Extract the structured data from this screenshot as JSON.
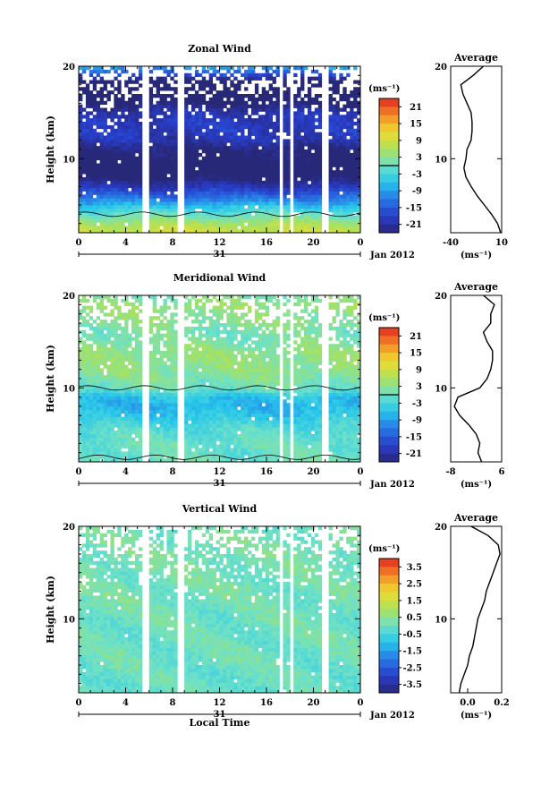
{
  "figure": {
    "xlabel": "Local Time",
    "date_label": "Jan 2012",
    "day_label": "31",
    "x_tick_labels": [
      "0",
      "4",
      "8",
      "12",
      "16",
      "20",
      "0"
    ],
    "y_tick_labels": [
      "20",
      "10"
    ],
    "ylabel": "Height (km)",
    "colorbar_unit": "(ms⁻¹)",
    "average_title": "Average",
    "average_unit": "(ms⁻¹)"
  },
  "chart_data": [
    {
      "type": "heatmap",
      "title": "Zonal Wind",
      "xlabel": "",
      "ylabel": "Height (km)",
      "x_range_hours": [
        0,
        24
      ],
      "ylim_km": [
        2,
        20
      ],
      "colorbar_ticks": [
        "21",
        "15",
        "9",
        "3",
        "-3",
        "-9",
        "-15",
        "-21"
      ],
      "colorbar_range": [
        -24,
        24
      ],
      "contour_levels": [
        0
      ],
      "data_gaps_hours": [
        [
          5.4,
          6.0
        ],
        [
          8.5,
          9.0
        ],
        [
          17.0,
          17.4
        ],
        [
          17.9,
          18.4
        ],
        [
          20.7,
          21.2
        ]
      ],
      "profile": {
        "heights_km": [
          2,
          3,
          4,
          5,
          6,
          7,
          8,
          9,
          10,
          11,
          12,
          13,
          14,
          15,
          16,
          17,
          18,
          19,
          20
        ],
        "values": [
          9,
          6,
          0,
          -7,
          -14,
          -20,
          -25,
          -27,
          -25,
          -24,
          -20,
          -19,
          -19,
          -20,
          -24,
          -28,
          -30,
          -18,
          -8
        ],
        "xlim": [
          -40,
          10
        ],
        "xtick_labels": [
          "-40",
          "10"
        ]
      }
    },
    {
      "type": "heatmap",
      "title": "Meridional Wind",
      "xlabel": "",
      "ylabel": "Height (km)",
      "x_range_hours": [
        0,
        24
      ],
      "ylim_km": [
        2,
        20
      ],
      "colorbar_ticks": [
        "21",
        "15",
        "9",
        "3",
        "-3",
        "-9",
        "-15",
        "-21"
      ],
      "colorbar_range": [
        -24,
        24
      ],
      "contour_levels": [
        0
      ],
      "data_gaps_hours": [
        [
          5.4,
          6.0
        ],
        [
          8.5,
          9.0
        ],
        [
          17.0,
          17.4
        ],
        [
          17.9,
          18.4
        ],
        [
          20.7,
          21.2
        ]
      ],
      "profile": {
        "heights_km": [
          2,
          3,
          4,
          5,
          6,
          7,
          8,
          9,
          10,
          11,
          12,
          13,
          14,
          15,
          16,
          17,
          18,
          19,
          20
        ],
        "values": [
          0.5,
          -0.5,
          0,
          -1,
          -3,
          -5.5,
          -7,
          -6,
          0,
          2,
          3,
          3.5,
          3.5,
          2,
          1,
          3,
          3,
          4,
          1
        ],
        "xlim": [
          -8,
          6
        ],
        "xtick_labels": [
          "-8",
          "6"
        ]
      }
    },
    {
      "type": "heatmap",
      "title": "Vertical Wind",
      "xlabel": "Local Time",
      "ylabel": "Height (km)",
      "x_range_hours": [
        0,
        24
      ],
      "ylim_km": [
        2,
        20
      ],
      "colorbar_ticks": [
        "3.5",
        "2.5",
        "1.5",
        "0.5",
        "-0.5",
        "-1.5",
        "-2.5",
        "-3.5"
      ],
      "colorbar_range": [
        -4,
        4
      ],
      "contour_levels": [],
      "data_gaps_hours": [
        [
          5.4,
          6.0
        ],
        [
          8.5,
          9.0
        ],
        [
          17.0,
          17.4
        ],
        [
          17.9,
          18.4
        ],
        [
          20.7,
          21.2
        ]
      ],
      "profile": {
        "heights_km": [
          2,
          3,
          4,
          5,
          6,
          7,
          8,
          9,
          10,
          11,
          12,
          13,
          14,
          15,
          16,
          17,
          18,
          19,
          20
        ],
        "values": [
          -0.05,
          -0.04,
          -0.02,
          0.0,
          0.01,
          0.03,
          0.04,
          0.05,
          0.06,
          0.08,
          0.1,
          0.11,
          0.13,
          0.15,
          0.17,
          0.19,
          0.18,
          0.12,
          0.02
        ],
        "xlim": [
          -0.1,
          0.2
        ],
        "xtick_labels": [
          "0.0",
          "0.2"
        ]
      }
    }
  ]
}
